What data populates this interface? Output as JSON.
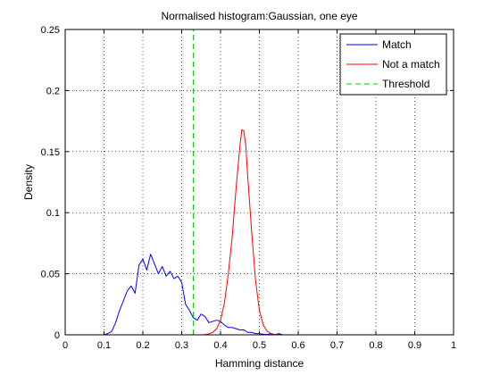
{
  "chart_data": {
    "type": "line",
    "title": "Normalised histogram:Gaussian, one eye",
    "xlabel": "Hamming distance",
    "ylabel": "Density",
    "xlim": [
      0,
      1
    ],
    "ylim": [
      0,
      0.25
    ],
    "xticks": [
      0,
      0.1,
      0.2,
      0.3,
      0.4,
      0.5,
      0.6,
      0.7,
      0.8,
      0.9,
      1
    ],
    "xtick_labels": [
      "0",
      "0.1",
      "0.2",
      "0.3",
      "0.4",
      "0.5",
      "0.6",
      "0.7",
      "0.8",
      "0.9",
      "1"
    ],
    "yticks": [
      0,
      0.05,
      0.1,
      0.15,
      0.2,
      0.25
    ],
    "ytick_labels": [
      "0",
      "0.05",
      "0.1",
      "0.15",
      "0.2",
      "0.25"
    ],
    "grid": true,
    "legend_position": "top-right",
    "series": [
      {
        "name": "Match",
        "color": "#0000ff",
        "dash": "solid",
        "x": [
          0,
          0.1,
          0.11,
          0.12,
          0.13,
          0.14,
          0.15,
          0.16,
          0.17,
          0.18,
          0.19,
          0.2,
          0.21,
          0.22,
          0.23,
          0.24,
          0.25,
          0.26,
          0.27,
          0.28,
          0.29,
          0.3,
          0.31,
          0.32,
          0.33,
          0.34,
          0.35,
          0.36,
          0.37,
          0.38,
          0.39,
          0.4,
          0.41,
          0.42,
          0.43,
          0.44,
          0.45,
          0.46,
          0.47,
          0.48,
          0.49,
          0.5,
          0.51,
          0.52,
          0.53,
          0.54,
          0.55,
          0.56,
          0.57,
          0.58,
          0.59,
          0.6,
          1
        ],
        "y": [
          0,
          0,
          0.001,
          0.003,
          0.01,
          0.02,
          0.028,
          0.036,
          0.04,
          0.034,
          0.057,
          0.062,
          0.053,
          0.066,
          0.058,
          0.05,
          0.056,
          0.048,
          0.052,
          0.046,
          0.048,
          0.043,
          0.025,
          0.02,
          0.014,
          0.012,
          0.017,
          0.015,
          0.01,
          0.011,
          0.012,
          0.011,
          0.008,
          0.006,
          0.006,
          0.005,
          0.004,
          0.004,
          0.002,
          0.002,
          0.001,
          0.001,
          0.0005,
          0.0002,
          0.001,
          0,
          0.001,
          0,
          0,
          0,
          0,
          0,
          0
        ]
      },
      {
        "name": "Not a match",
        "color": "#ff0000",
        "dash": "solid",
        "x": [
          0,
          0.35,
          0.36,
          0.37,
          0.38,
          0.39,
          0.4,
          0.41,
          0.42,
          0.43,
          0.44,
          0.45,
          0.455,
          0.46,
          0.465,
          0.47,
          0.48,
          0.49,
          0.5,
          0.51,
          0.52,
          0.53,
          0.54,
          0.55,
          0.56,
          1
        ],
        "y": [
          0,
          0,
          0.0002,
          0.0008,
          0.002,
          0.005,
          0.012,
          0.026,
          0.05,
          0.08,
          0.12,
          0.155,
          0.168,
          0.167,
          0.155,
          0.13,
          0.085,
          0.045,
          0.02,
          0.008,
          0.003,
          0.001,
          0.0003,
          0,
          0,
          0
        ]
      },
      {
        "name": "Threshold",
        "color": "#00cc00",
        "dash": "dashed",
        "x": [
          0.33,
          0.33
        ],
        "y": [
          0,
          0.25
        ]
      }
    ]
  }
}
